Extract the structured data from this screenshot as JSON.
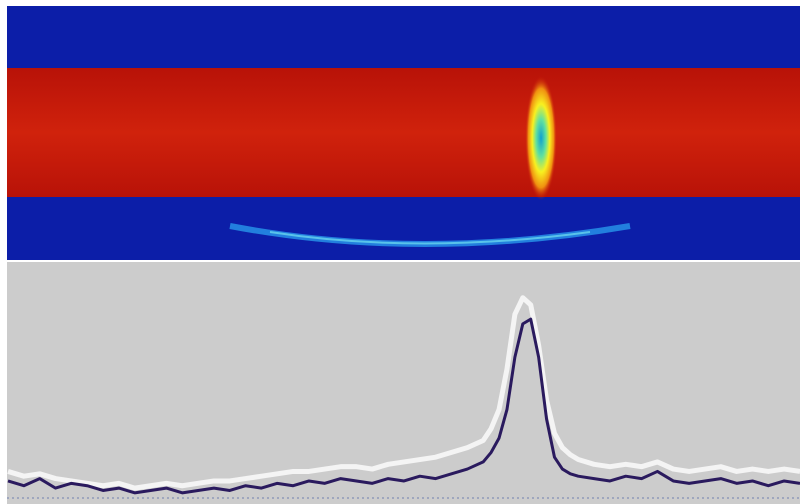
{
  "chart_data": {
    "type": "line",
    "x": [
      0,
      2,
      4,
      6,
      8,
      10,
      12,
      14,
      16,
      18,
      20,
      22,
      24,
      26,
      28,
      30,
      32,
      34,
      36,
      38,
      40,
      42,
      44,
      46,
      48,
      50,
      52,
      54,
      56,
      58,
      60,
      61,
      62,
      63,
      64,
      65,
      66,
      67,
      68,
      69,
      70,
      71,
      72,
      74,
      76,
      78,
      80,
      82,
      84,
      86,
      88,
      90,
      92,
      94,
      96,
      98,
      100
    ],
    "xlim": [
      0,
      100
    ],
    "ylim": [
      0,
      1
    ],
    "series": [
      {
        "color": "#f4f4f4",
        "values": [
          0.12,
          0.1,
          0.11,
          0.09,
          0.08,
          0.07,
          0.06,
          0.07,
          0.05,
          0.06,
          0.07,
          0.06,
          0.07,
          0.08,
          0.08,
          0.09,
          0.1,
          0.11,
          0.12,
          0.12,
          0.13,
          0.14,
          0.14,
          0.13,
          0.15,
          0.16,
          0.17,
          0.18,
          0.2,
          0.22,
          0.25,
          0.3,
          0.38,
          0.55,
          0.78,
          0.85,
          0.82,
          0.65,
          0.42,
          0.28,
          0.22,
          0.19,
          0.17,
          0.15,
          0.14,
          0.15,
          0.14,
          0.16,
          0.13,
          0.12,
          0.13,
          0.14,
          0.12,
          0.13,
          0.12,
          0.13,
          0.12
        ]
      },
      {
        "color": "#2a1a5e",
        "values": [
          0.08,
          0.06,
          0.09,
          0.05,
          0.07,
          0.06,
          0.04,
          0.05,
          0.03,
          0.04,
          0.05,
          0.03,
          0.04,
          0.05,
          0.04,
          0.06,
          0.05,
          0.07,
          0.06,
          0.08,
          0.07,
          0.09,
          0.08,
          0.07,
          0.09,
          0.08,
          0.1,
          0.09,
          0.11,
          0.13,
          0.16,
          0.2,
          0.26,
          0.38,
          0.6,
          0.74,
          0.76,
          0.6,
          0.34,
          0.18,
          0.13,
          0.11,
          0.1,
          0.09,
          0.08,
          0.1,
          0.09,
          0.12,
          0.08,
          0.07,
          0.08,
          0.09,
          0.07,
          0.08,
          0.06,
          0.08,
          0.07
        ]
      }
    ]
  }
}
